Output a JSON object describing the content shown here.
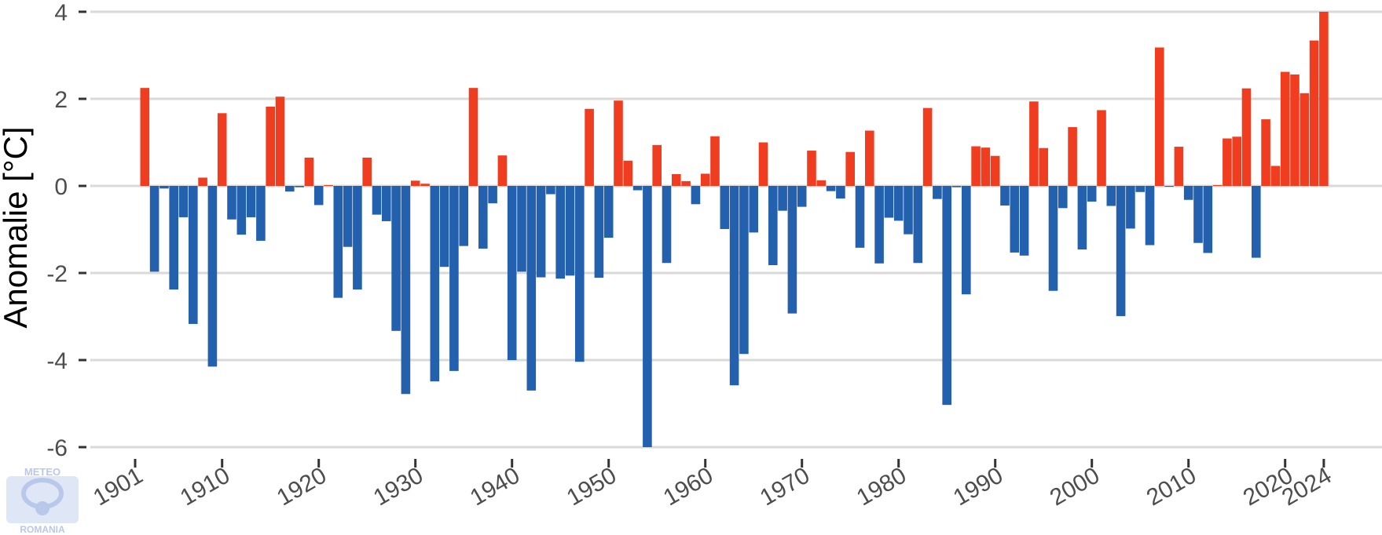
{
  "chart_data": {
    "type": "bar",
    "ylabel": "Anomalie [°C]",
    "xlabel": "",
    "title": "",
    "ylim": [
      -6,
      4
    ],
    "yticks": [
      -6,
      -4,
      -2,
      0,
      2,
      4
    ],
    "xticks": [
      1901,
      1910,
      1920,
      1930,
      1940,
      1950,
      1960,
      1970,
      1980,
      1990,
      2000,
      2010,
      2020,
      2024
    ],
    "grid": "horizontal",
    "colors": {
      "positive": "#f03c1f",
      "negative": "#2360ad",
      "grid": "#d9d9d9"
    },
    "x": [
      1902,
      1903,
      1904,
      1905,
      1906,
      1907,
      1908,
      1909,
      1910,
      1911,
      1912,
      1913,
      1914,
      1915,
      1916,
      1917,
      1918,
      1919,
      1920,
      1921,
      1922,
      1923,
      1924,
      1925,
      1926,
      1927,
      1928,
      1929,
      1930,
      1931,
      1932,
      1933,
      1934,
      1935,
      1936,
      1937,
      1938,
      1939,
      1940,
      1941,
      1942,
      1943,
      1944,
      1945,
      1946,
      1947,
      1948,
      1949,
      1950,
      1951,
      1952,
      1953,
      1954,
      1955,
      1956,
      1957,
      1958,
      1959,
      1960,
      1961,
      1962,
      1963,
      1964,
      1965,
      1966,
      1967,
      1968,
      1969,
      1970,
      1971,
      1972,
      1973,
      1974,
      1975,
      1976,
      1977,
      1978,
      1979,
      1980,
      1981,
      1982,
      1983,
      1984,
      1985,
      1986,
      1987,
      1988,
      1989,
      1990,
      1991,
      1992,
      1993,
      1994,
      1995,
      1996,
      1997,
      1998,
      1999,
      2000,
      2001,
      2002,
      2003,
      2004,
      2005,
      2006,
      2007,
      2008,
      2009,
      2010,
      2011,
      2012,
      2013,
      2014,
      2015,
      2016,
      2017,
      2018,
      2019,
      2020,
      2021,
      2022,
      2023,
      2024
    ],
    "values": [
      2.25,
      -1.97,
      -0.06,
      -2.38,
      -0.72,
      -3.17,
      0.19,
      -4.15,
      1.67,
      -0.77,
      -1.12,
      -0.72,
      -1.26,
      1.82,
      2.05,
      -0.13,
      -0.03,
      0.65,
      -0.44,
      0.02,
      -2.57,
      -1.4,
      -2.38,
      0.65,
      -0.66,
      -0.81,
      -3.33,
      -4.78,
      0.12,
      0.05,
      -4.49,
      -1.86,
      -4.25,
      -1.38,
      2.25,
      -1.44,
      -0.4,
      0.7,
      -4.0,
      -1.97,
      -4.7,
      -2.1,
      -0.19,
      -2.13,
      -2.06,
      -4.04,
      1.77,
      -2.11,
      -1.19,
      1.96,
      0.58,
      -0.1,
      -6.0,
      0.94,
      -1.77,
      0.27,
      0.11,
      -0.42,
      0.28,
      1.14,
      -0.99,
      -4.58,
      -3.86,
      -1.07,
      1.0,
      -1.82,
      -0.57,
      -2.93,
      -0.48,
      0.81,
      0.13,
      -0.12,
      -0.29,
      0.78,
      -1.42,
      1.27,
      -1.78,
      -0.73,
      -0.8,
      -1.11,
      -1.77,
      1.79,
      -0.3,
      -5.03,
      -0.03,
      -2.49,
      0.91,
      0.88,
      0.69,
      -0.45,
      -1.53,
      -1.6,
      1.94,
      0.87,
      -2.41,
      -0.51,
      1.35,
      -1.46,
      -0.36,
      1.74,
      -0.46,
      -2.99,
      -0.98,
      -0.14,
      -1.36,
      3.18,
      -0.02,
      0.9,
      -0.32,
      -1.31,
      -1.54,
      0.02,
      1.09,
      1.13,
      2.24,
      -1.65,
      1.53,
      0.46,
      2.62,
      2.56,
      2.13,
      3.34,
      4.0
    ]
  },
  "logo": {
    "top_text": "METEO",
    "bottom_text": "ROMANIA"
  }
}
